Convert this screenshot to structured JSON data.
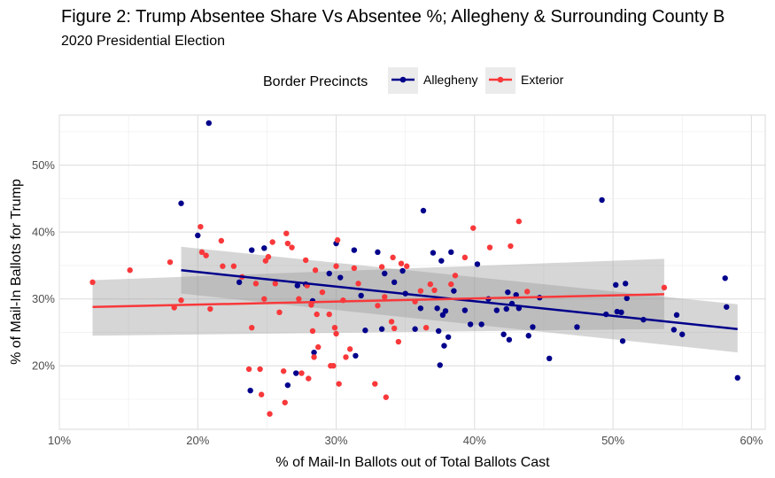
{
  "chart_data": {
    "type": "scatter",
    "title": "Figure 2: Trump Absentee Share Vs Absentee %; Allegheny & Surrounding County B",
    "subtitle": "2020 Presidential Election",
    "xlabel": "% of Mail-In Ballots out of Total Ballots Cast",
    "ylabel": "% of Mail-In Ballots for Trump",
    "xlim": [
      0.1,
      0.61
    ],
    "ylim": [
      0.105,
      0.575
    ],
    "x_ticks": [
      0.1,
      0.2,
      0.3,
      0.4,
      0.5,
      0.6
    ],
    "x_tick_labels": [
      "10%",
      "20%",
      "30%",
      "40%",
      "50%",
      "60%"
    ],
    "y_ticks": [
      0.2,
      0.3,
      0.4,
      0.5
    ],
    "y_tick_labels": [
      "20%",
      "30%",
      "40%",
      "50%"
    ],
    "grid": true,
    "legend": {
      "title": "Border Precincts",
      "position": "top",
      "entries": [
        "Allegheny",
        "Exterior"
      ]
    },
    "series": [
      {
        "name": "Allegheny",
        "color": "#00008B",
        "trend": {
          "x": [
            0.188,
            0.59
          ],
          "y": [
            0.343,
            0.255
          ],
          "ci_low": [
            0.308,
            0.22
          ],
          "ci_high": [
            0.378,
            0.292
          ]
        },
        "points": [
          [
            0.208,
            0.563
          ],
          [
            0.188,
            0.443
          ],
          [
            0.2,
            0.395
          ],
          [
            0.239,
            0.373
          ],
          [
            0.248,
            0.376
          ],
          [
            0.23,
            0.325
          ],
          [
            0.238,
            0.163
          ],
          [
            0.265,
            0.171
          ],
          [
            0.271,
            0.189
          ],
          [
            0.272,
            0.32
          ],
          [
            0.278,
            0.322
          ],
          [
            0.283,
            0.297
          ],
          [
            0.284,
            0.22
          ],
          [
            0.295,
            0.338
          ],
          [
            0.3,
            0.383
          ],
          [
            0.303,
            0.332
          ],
          [
            0.313,
            0.373
          ],
          [
            0.314,
            0.215
          ],
          [
            0.318,
            0.305
          ],
          [
            0.321,
            0.253
          ],
          [
            0.33,
            0.37
          ],
          [
            0.333,
            0.255
          ],
          [
            0.335,
            0.338
          ],
          [
            0.342,
            0.325
          ],
          [
            0.348,
            0.342
          ],
          [
            0.35,
            0.308
          ],
          [
            0.357,
            0.255
          ],
          [
            0.361,
            0.286
          ],
          [
            0.363,
            0.432
          ],
          [
            0.37,
            0.369
          ],
          [
            0.373,
            0.286
          ],
          [
            0.374,
            0.252
          ],
          [
            0.375,
            0.201
          ],
          [
            0.376,
            0.357
          ],
          [
            0.377,
            0.276
          ],
          [
            0.378,
            0.23
          ],
          [
            0.379,
            0.282
          ],
          [
            0.381,
            0.243
          ],
          [
            0.383,
            0.37
          ],
          [
            0.385,
            0.312
          ],
          [
            0.393,
            0.283
          ],
          [
            0.397,
            0.262
          ],
          [
            0.402,
            0.352
          ],
          [
            0.405,
            0.262
          ],
          [
            0.41,
            0.3
          ],
          [
            0.416,
            0.283
          ],
          [
            0.421,
            0.247
          ],
          [
            0.423,
            0.285
          ],
          [
            0.424,
            0.31
          ],
          [
            0.425,
            0.239
          ],
          [
            0.427,
            0.293
          ],
          [
            0.43,
            0.306
          ],
          [
            0.432,
            0.286
          ],
          [
            0.439,
            0.245
          ],
          [
            0.442,
            0.258
          ],
          [
            0.447,
            0.302
          ],
          [
            0.454,
            0.211
          ],
          [
            0.474,
            0.258
          ],
          [
            0.492,
            0.448
          ],
          [
            0.495,
            0.277
          ],
          [
            0.502,
            0.321
          ],
          [
            0.503,
            0.281
          ],
          [
            0.506,
            0.28
          ],
          [
            0.507,
            0.237
          ],
          [
            0.509,
            0.323
          ],
          [
            0.51,
            0.301
          ],
          [
            0.522,
            0.269
          ],
          [
            0.544,
            0.254
          ],
          [
            0.546,
            0.276
          ],
          [
            0.55,
            0.247
          ],
          [
            0.581,
            0.331
          ],
          [
            0.582,
            0.288
          ],
          [
            0.59,
            0.182
          ]
        ]
      },
      {
        "name": "Exterior",
        "color": "#F8383A",
        "trend": {
          "x": [
            0.124,
            0.537
          ],
          "y": [
            0.288,
            0.307
          ],
          "ci_low": [
            0.245,
            0.255
          ],
          "ci_high": [
            0.328,
            0.36
          ]
        },
        "points": [
          [
            0.124,
            0.325
          ],
          [
            0.151,
            0.343
          ],
          [
            0.18,
            0.355
          ],
          [
            0.183,
            0.287
          ],
          [
            0.188,
            0.298
          ],
          [
            0.202,
            0.408
          ],
          [
            0.203,
            0.37
          ],
          [
            0.206,
            0.365
          ],
          [
            0.209,
            0.285
          ],
          [
            0.217,
            0.387
          ],
          [
            0.218,
            0.349
          ],
          [
            0.226,
            0.349
          ],
          [
            0.232,
            0.333
          ],
          [
            0.237,
            0.195
          ],
          [
            0.239,
            0.257
          ],
          [
            0.242,
            0.323
          ],
          [
            0.245,
            0.195
          ],
          [
            0.246,
            0.157
          ],
          [
            0.248,
            0.3
          ],
          [
            0.249,
            0.357
          ],
          [
            0.251,
            0.363
          ],
          [
            0.252,
            0.128
          ],
          [
            0.254,
            0.385
          ],
          [
            0.256,
            0.323
          ],
          [
            0.259,
            0.28
          ],
          [
            0.262,
            0.192
          ],
          [
            0.263,
            0.145
          ],
          [
            0.264,
            0.398
          ],
          [
            0.265,
            0.383
          ],
          [
            0.268,
            0.377
          ],
          [
            0.273,
            0.3
          ],
          [
            0.275,
            0.189
          ],
          [
            0.278,
            0.358
          ],
          [
            0.279,
            0.32
          ],
          [
            0.28,
            0.181
          ],
          [
            0.282,
            0.291
          ],
          [
            0.283,
            0.252
          ],
          [
            0.284,
            0.213
          ],
          [
            0.285,
            0.343
          ],
          [
            0.286,
            0.277
          ],
          [
            0.287,
            0.228
          ],
          [
            0.29,
            0.31
          ],
          [
            0.295,
            0.277
          ],
          [
            0.296,
            0.2
          ],
          [
            0.298,
            0.2
          ],
          [
            0.299,
            0.257
          ],
          [
            0.3,
            0.248
          ],
          [
            0.3,
            0.349
          ],
          [
            0.301,
            0.388
          ],
          [
            0.302,
            0.173
          ],
          [
            0.305,
            0.298
          ],
          [
            0.307,
            0.213
          ],
          [
            0.31,
            0.225
          ],
          [
            0.313,
            0.346
          ],
          [
            0.316,
            0.323
          ],
          [
            0.328,
            0.173
          ],
          [
            0.33,
            0.29
          ],
          [
            0.333,
            0.348
          ],
          [
            0.335,
            0.303
          ],
          [
            0.336,
            0.153
          ],
          [
            0.34,
            0.266
          ],
          [
            0.341,
            0.362
          ],
          [
            0.342,
            0.256
          ],
          [
            0.345,
            0.236
          ],
          [
            0.347,
            0.353
          ],
          [
            0.351,
            0.349
          ],
          [
            0.357,
            0.296
          ],
          [
            0.361,
            0.312
          ],
          [
            0.365,
            0.257
          ],
          [
            0.368,
            0.322
          ],
          [
            0.371,
            0.313
          ],
          [
            0.383,
            0.322
          ],
          [
            0.386,
            0.335
          ],
          [
            0.393,
            0.362
          ],
          [
            0.399,
            0.406
          ],
          [
            0.411,
            0.377
          ],
          [
            0.426,
            0.379
          ],
          [
            0.432,
            0.416
          ],
          [
            0.438,
            0.311
          ],
          [
            0.537,
            0.317
          ]
        ]
      }
    ]
  }
}
